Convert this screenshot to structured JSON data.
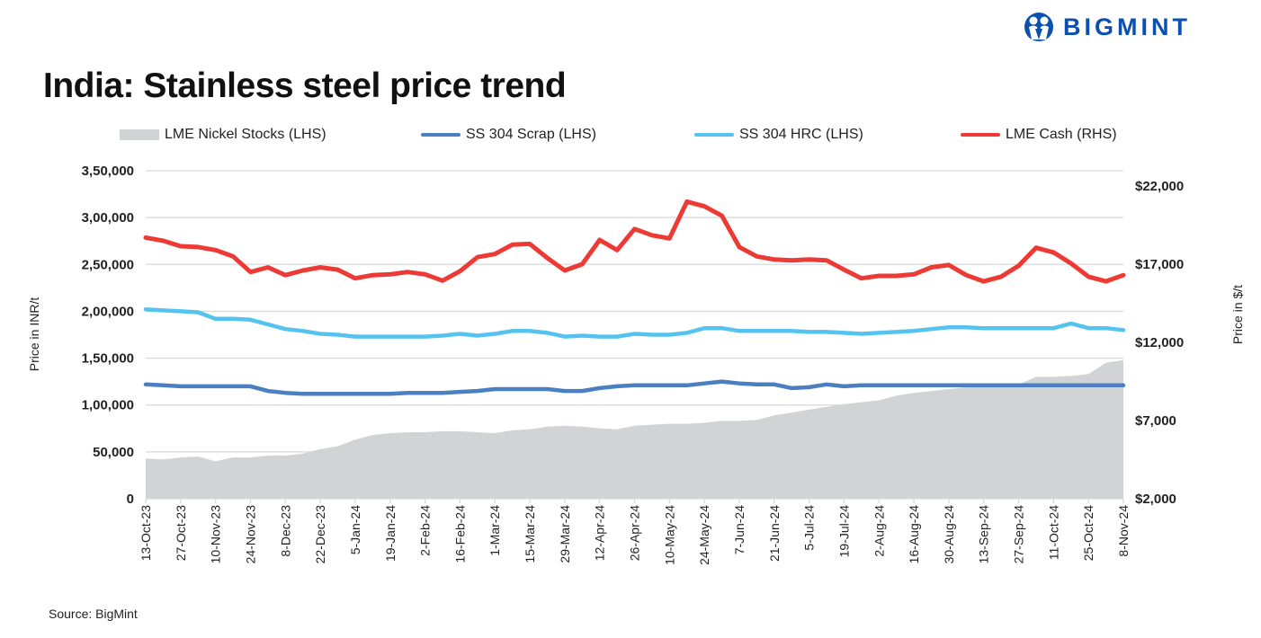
{
  "title": "India: Stainless steel price trend",
  "brand": "BIGMINT",
  "source": "Source: BigMint",
  "colors": {
    "stocks": "#d2d3d5",
    "scrap": "#4a7fc1",
    "hrc": "#55c3f0",
    "cash": "#ee3a35",
    "brand": "#0b4fb0"
  },
  "chart_data": {
    "type": "line",
    "title": "India: Stainless steel price trend",
    "ylabel": "Price in INR/t",
    "y2label": "Price in $/t",
    "ylim": [
      0,
      350000
    ],
    "y2lim": [
      2000,
      22000
    ],
    "yticks": [
      "0",
      "50,000",
      "1,00,000",
      "1,50,000",
      "2,00,000",
      "2,50,000",
      "3,00,000",
      "3,50,000"
    ],
    "y2ticks": [
      "$2,000",
      "$7,000",
      "$12,000",
      "$17,000",
      "$22,000"
    ],
    "grid": true,
    "legend": "top",
    "x_tick_labels": [
      "13-Oct-23",
      "27-Oct-23",
      "10-Nov-23",
      "24-Nov-23",
      "8-Dec-23",
      "22-Dec-23",
      "5-Jan-24",
      "19-Jan-24",
      "2-Feb-24",
      "16-Feb-24",
      "1-Mar-24",
      "15-Mar-24",
      "29-Mar-24",
      "12-Apr-24",
      "26-Apr-24",
      "10-May-24",
      "24-May-24",
      "7-Jun-24",
      "21-Jun-24",
      "5-Jul-24",
      "19-Jul-24",
      "2-Aug-24",
      "16-Aug-24",
      "30-Aug-24",
      "13-Sep-24",
      "27-Sep-24",
      "11-Oct-24",
      "25-Oct-24",
      "8-Nov-24"
    ],
    "x_frequency": "weekly, 13-Oct-23 to 8-Nov-24",
    "series": [
      {
        "name": "LME Nickel Stocks (LHS)",
        "type": "area",
        "axis": "left",
        "values": [
          43000,
          42000,
          44000,
          45000,
          40000,
          44000,
          44000,
          46000,
          46000,
          48000,
          53000,
          56000,
          63000,
          68000,
          70000,
          71000,
          71000,
          72000,
          72000,
          71000,
          70000,
          73000,
          74000,
          77000,
          78000,
          77000,
          75000,
          74000,
          78000,
          79000,
          80000,
          80000,
          81000,
          83000,
          83000,
          84000,
          89000,
          92000,
          95000,
          98000,
          101000,
          103000,
          105000,
          110000,
          113000,
          115000,
          117000,
          119000,
          120000,
          121000,
          122000,
          130000,
          130000,
          131000,
          133000,
          145000,
          148000
        ]
      },
      {
        "name": "SS 304 Scrap (LHS)",
        "type": "line",
        "axis": "left",
        "values": [
          122000,
          121000,
          120000,
          120000,
          120000,
          120000,
          120000,
          115000,
          113000,
          112000,
          112000,
          112000,
          112000,
          112000,
          112000,
          113000,
          113000,
          113000,
          114000,
          115000,
          117000,
          117000,
          117000,
          117000,
          115000,
          115000,
          118000,
          120000,
          121000,
          121000,
          121000,
          121000,
          123000,
          125000,
          123000,
          122000,
          122000,
          118000,
          119000,
          122000,
          120000,
          121000,
          121000,
          121000,
          121000,
          121000,
          121000,
          121000,
          121000,
          121000,
          121000,
          121000,
          121000,
          121000,
          121000,
          121000,
          121000
        ]
      },
      {
        "name": "SS 304 HRC (LHS)",
        "type": "line",
        "axis": "left",
        "values": [
          202000,
          201000,
          200000,
          199000,
          192000,
          192000,
          191000,
          186000,
          181000,
          179000,
          176000,
          175000,
          173000,
          173000,
          173000,
          173000,
          173000,
          174000,
          176000,
          174000,
          176000,
          179000,
          179000,
          177000,
          173000,
          174000,
          173000,
          173000,
          176000,
          175000,
          175000,
          177000,
          182000,
          182000,
          179000,
          179000,
          179000,
          179000,
          178000,
          178000,
          177000,
          176000,
          177000,
          178000,
          179000,
          181000,
          183000,
          183000,
          182000,
          182000,
          182000,
          182000,
          182000,
          187000,
          182000,
          182000,
          180000
        ]
      },
      {
        "name": "LME Cash (RHS)",
        "type": "line",
        "axis": "right",
        "values": [
          18700,
          18500,
          18150,
          18100,
          17900,
          17500,
          16500,
          16800,
          16300,
          16600,
          16800,
          16650,
          16100,
          16300,
          16350,
          16500,
          16350,
          15950,
          16550,
          17450,
          17650,
          18250,
          18300,
          17400,
          16600,
          17000,
          18550,
          17900,
          19250,
          18850,
          18650,
          21000,
          20700,
          20100,
          18100,
          17500,
          17300,
          17250,
          17300,
          17250,
          16650,
          16100,
          16250,
          16250,
          16350,
          16800,
          16950,
          16300,
          15900,
          16200,
          16900,
          18050,
          17750,
          17050,
          16200,
          15900,
          16300
        ]
      }
    ]
  }
}
